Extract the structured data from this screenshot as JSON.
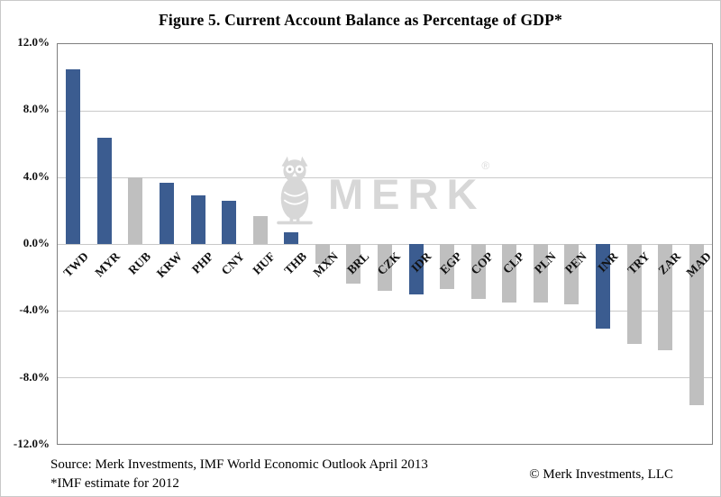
{
  "title": "Figure 5. Current Account Balance as Percentage of GDP*",
  "watermark": {
    "text": "MERK",
    "reg": "®"
  },
  "footer": {
    "source": "Source: Merk Investments, IMF World Economic Outlook April 2013",
    "note": "*IMF estimate for 2012",
    "copyright": "© Merk Investments, LLC"
  },
  "colors": {
    "blue": "#3b5c90",
    "gray": "#bfbfbf",
    "gridline": "#c9c9c9",
    "plot_border": "#7f7f7f",
    "watermark": "#d7d7d7"
  },
  "chart_data": {
    "type": "bar",
    "title": "Figure 5. Current Account Balance as Percentage of GDP*",
    "xlabel": "",
    "ylabel": "",
    "ylim": [
      -12,
      12
    ],
    "grid": true,
    "legend": "none",
    "yticks": [
      {
        "value": 12,
        "label": "12.0%"
      },
      {
        "value": 8,
        "label": "8.0%"
      },
      {
        "value": 4,
        "label": "4.0%"
      },
      {
        "value": 0,
        "label": "0.0%"
      },
      {
        "value": -4,
        "label": "-4.0%"
      },
      {
        "value": -8,
        "label": "-8.0%"
      },
      {
        "value": -12,
        "label": "-12.0%"
      }
    ],
    "categories": [
      "TWD",
      "MYR",
      "RUB",
      "KRW",
      "PHP",
      "CNY",
      "HUF",
      "THB",
      "MXN",
      "BRL",
      "CZK",
      "IDR",
      "EGP",
      "COP",
      "CLP",
      "PLN",
      "PEN",
      "INR",
      "TRY",
      "ZAR",
      "MAD"
    ],
    "values": [
      10.5,
      6.4,
      4.0,
      3.7,
      2.9,
      2.6,
      1.7,
      0.7,
      -1.2,
      -2.4,
      -2.8,
      -3.0,
      -2.7,
      -3.3,
      -3.5,
      -3.5,
      -3.6,
      -5.1,
      -6.0,
      -6.4,
      -9.7
    ],
    "bar_colors": [
      "blue",
      "blue",
      "gray",
      "blue",
      "blue",
      "blue",
      "gray",
      "blue",
      "gray",
      "gray",
      "gray",
      "blue",
      "gray",
      "gray",
      "gray",
      "gray",
      "gray",
      "blue",
      "gray",
      "gray",
      "gray"
    ]
  }
}
